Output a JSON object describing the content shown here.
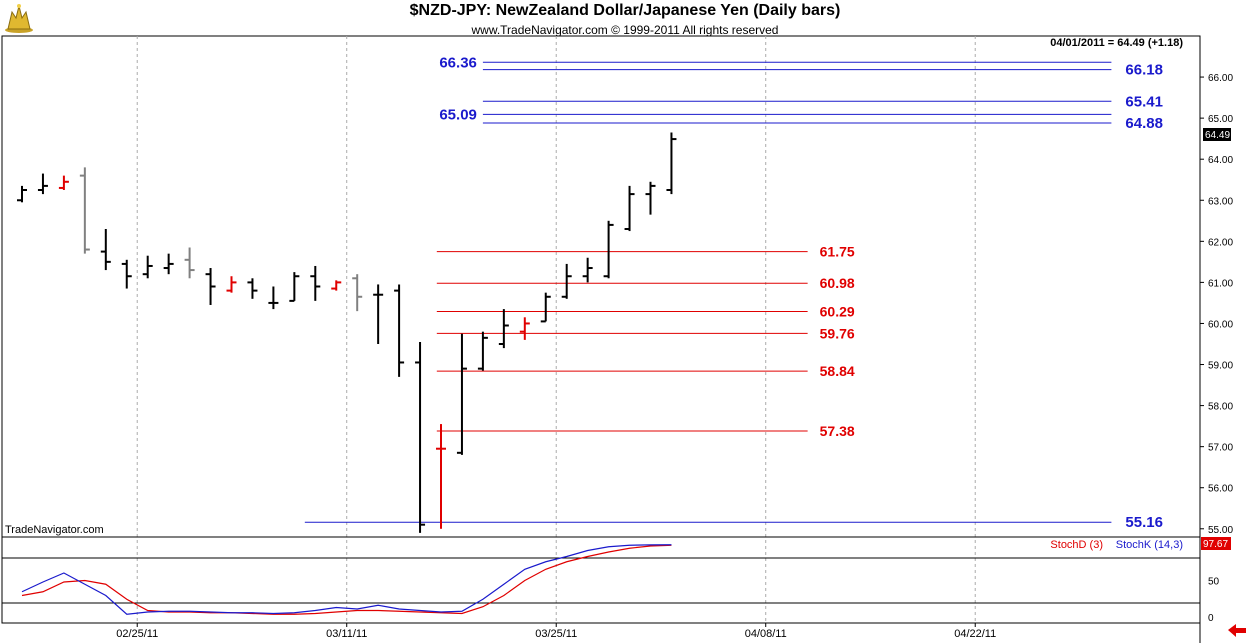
{
  "header": {
    "title": "$NZD-JPY:  NewZealand Dollar/Japanese Yen  (Daily bars)",
    "subtitle": "www.TradeNavigator.com © 1999-2011 All rights reserved",
    "last_quote": "04/01/2011 = 64.49 (+1.18)",
    "last_price_tag": "64.49",
    "watermark": "TradeNavigator.com"
  },
  "colors": {
    "up_bar": "#000000",
    "down_bar": "#e00000",
    "neutral_bar": "#808080",
    "fib_blue": "#1a1acc",
    "fib_red": "#e00000",
    "stochD": "#e00000",
    "stochK": "#1a1acc"
  },
  "chart_data": [
    {
      "type": "ohlc",
      "title": "$NZD-JPY:  NewZealand Dollar/Japanese Yen  (Daily bars)",
      "ylim": [
        54.8,
        67.0
      ],
      "y_ticks": [
        "55.00",
        "56.00",
        "57.00",
        "58.00",
        "59.00",
        "60.00",
        "61.00",
        "62.00",
        "63.00",
        "64.00",
        "65.00",
        "66.00"
      ],
      "x_ticks": [
        {
          "index": 5.5,
          "label": "02/25/11"
        },
        {
          "index": 15.5,
          "label": "03/11/11"
        },
        {
          "index": 25.5,
          "label": "03/25/11"
        },
        {
          "index": 35.5,
          "label": "04/08/11"
        },
        {
          "index": 45.5,
          "label": "04/22/11"
        }
      ],
      "bars": [
        {
          "o": 63.0,
          "h": 63.35,
          "l": 62.95,
          "c": 63.25,
          "color": "black"
        },
        {
          "o": 63.25,
          "h": 63.65,
          "l": 63.15,
          "c": 63.35,
          "color": "black"
        },
        {
          "o": 63.3,
          "h": 63.6,
          "l": 63.25,
          "c": 63.45,
          "color": "red"
        },
        {
          "o": 63.6,
          "h": 63.8,
          "l": 61.7,
          "c": 61.8,
          "color": "gray"
        },
        {
          "o": 61.75,
          "h": 62.3,
          "l": 61.3,
          "c": 61.5,
          "color": "black"
        },
        {
          "o": 61.45,
          "h": 61.55,
          "l": 60.85,
          "c": 61.15,
          "color": "black"
        },
        {
          "o": 61.2,
          "h": 61.65,
          "l": 61.1,
          "c": 61.4,
          "color": "black"
        },
        {
          "o": 61.35,
          "h": 61.7,
          "l": 61.2,
          "c": 61.45,
          "color": "black"
        },
        {
          "o": 61.55,
          "h": 61.85,
          "l": 61.1,
          "c": 61.3,
          "color": "gray"
        },
        {
          "o": 61.2,
          "h": 61.35,
          "l": 60.45,
          "c": 60.9,
          "color": "black"
        },
        {
          "o": 60.8,
          "h": 61.15,
          "l": 60.75,
          "c": 61.0,
          "color": "red"
        },
        {
          "o": 61.0,
          "h": 61.1,
          "l": 60.6,
          "c": 60.8,
          "color": "black"
        },
        {
          "o": 60.5,
          "h": 60.9,
          "l": 60.35,
          "c": 60.5,
          "color": "black"
        },
        {
          "o": 60.55,
          "h": 61.25,
          "l": 60.55,
          "c": 61.15,
          "color": "black"
        },
        {
          "o": 61.15,
          "h": 61.4,
          "l": 60.55,
          "c": 60.9,
          "color": "black"
        },
        {
          "o": 60.85,
          "h": 61.05,
          "l": 60.8,
          "c": 61.0,
          "color": "red"
        },
        {
          "o": 61.1,
          "h": 61.2,
          "l": 60.3,
          "c": 60.65,
          "color": "gray"
        },
        {
          "o": 60.7,
          "h": 60.95,
          "l": 59.5,
          "c": 60.7,
          "color": "black"
        },
        {
          "o": 60.8,
          "h": 60.95,
          "l": 58.7,
          "c": 59.05,
          "color": "black"
        },
        {
          "o": 59.05,
          "h": 59.55,
          "l": 54.9,
          "c": 55.1,
          "color": "black"
        },
        {
          "o": 56.95,
          "h": 57.55,
          "l": 55.0,
          "c": 56.95,
          "color": "red"
        },
        {
          "o": 56.85,
          "h": 59.75,
          "l": 56.8,
          "c": 58.9,
          "color": "black"
        },
        {
          "o": 58.9,
          "h": 59.8,
          "l": 58.85,
          "c": 59.65,
          "color": "black"
        },
        {
          "o": 59.5,
          "h": 60.35,
          "l": 59.4,
          "c": 59.95,
          "color": "black"
        },
        {
          "o": 59.8,
          "h": 60.15,
          "l": 59.6,
          "c": 60.0,
          "color": "red"
        },
        {
          "o": 60.05,
          "h": 60.75,
          "l": 60.05,
          "c": 60.65,
          "color": "black"
        },
        {
          "o": 60.65,
          "h": 61.45,
          "l": 60.6,
          "c": 61.15,
          "color": "black"
        },
        {
          "o": 61.15,
          "h": 61.6,
          "l": 61.0,
          "c": 61.35,
          "color": "black"
        },
        {
          "o": 61.15,
          "h": 62.5,
          "l": 61.1,
          "c": 62.4,
          "color": "black"
        },
        {
          "o": 62.3,
          "h": 63.35,
          "l": 62.25,
          "c": 63.15,
          "color": "black"
        },
        {
          "o": 63.15,
          "h": 63.45,
          "l": 62.65,
          "c": 63.35,
          "color": "black"
        },
        {
          "o": 63.25,
          "h": 64.65,
          "l": 63.15,
          "c": 64.49,
          "color": "black"
        }
      ],
      "fib_levels": [
        {
          "value": 66.36,
          "label": "66.36",
          "color": "blue",
          "x_from": 22,
          "x_to": 52,
          "label_side": "left"
        },
        {
          "value": 66.18,
          "label": "66.18",
          "color": "blue",
          "x_from": 22,
          "x_to": 52,
          "label_side": "right"
        },
        {
          "value": 65.41,
          "label": "65.41",
          "color": "blue",
          "x_from": 22,
          "x_to": 52,
          "label_side": "right"
        },
        {
          "value": 65.09,
          "label": "65.09",
          "color": "blue",
          "x_from": 22,
          "x_to": 52,
          "label_side": "left"
        },
        {
          "value": 64.88,
          "label": "64.88",
          "color": "blue",
          "x_from": 22,
          "x_to": 52,
          "label_side": "right"
        },
        {
          "value": 61.75,
          "label": "61.75",
          "color": "red",
          "x_from": 19.8,
          "x_to": 37.5,
          "label_side": "right"
        },
        {
          "value": 60.98,
          "label": "60.98",
          "color": "red",
          "x_from": 19.8,
          "x_to": 37.5,
          "label_side": "right"
        },
        {
          "value": 60.29,
          "label": "60.29",
          "color": "red",
          "x_from": 19.8,
          "x_to": 37.5,
          "label_side": "right"
        },
        {
          "value": 59.76,
          "label": "59.76",
          "color": "red",
          "x_from": 19.8,
          "x_to": 37.5,
          "label_side": "right"
        },
        {
          "value": 58.84,
          "label": "58.84",
          "color": "red",
          "x_from": 19.8,
          "x_to": 37.5,
          "label_side": "right"
        },
        {
          "value": 57.38,
          "label": "57.38",
          "color": "red",
          "x_from": 19.8,
          "x_to": 37.5,
          "label_side": "right"
        },
        {
          "value": 55.16,
          "label": "55.16",
          "color": "blue",
          "x_from": 13.5,
          "x_to": 52,
          "label_side": "right"
        }
      ]
    },
    {
      "type": "line",
      "title": "",
      "ylim": [
        0,
        100
      ],
      "y_ticks": [
        "0",
        "50"
      ],
      "reference_lines": [
        20,
        80
      ],
      "legend": [
        "StochD (3)",
        "StochK (14,3)"
      ],
      "last_value": "97.67",
      "series": [
        {
          "name": "StochD (3)",
          "color": "red",
          "values": [
            30,
            35,
            48,
            50,
            45,
            25,
            10,
            8,
            8,
            7,
            7,
            6,
            5,
            5,
            6,
            8,
            10,
            10,
            9,
            8,
            7,
            6,
            15,
            30,
            50,
            65,
            75,
            82,
            88,
            93,
            96,
            97
          ]
        },
        {
          "name": "StochK (14,3)",
          "color": "blue",
          "values": [
            35,
            48,
            60,
            45,
            30,
            5,
            8,
            9,
            9,
            8,
            7,
            7,
            6,
            7,
            10,
            14,
            12,
            17,
            12,
            10,
            8,
            9,
            25,
            45,
            65,
            75,
            82,
            90,
            95,
            97,
            97.5,
            97.67
          ]
        }
      ]
    }
  ]
}
